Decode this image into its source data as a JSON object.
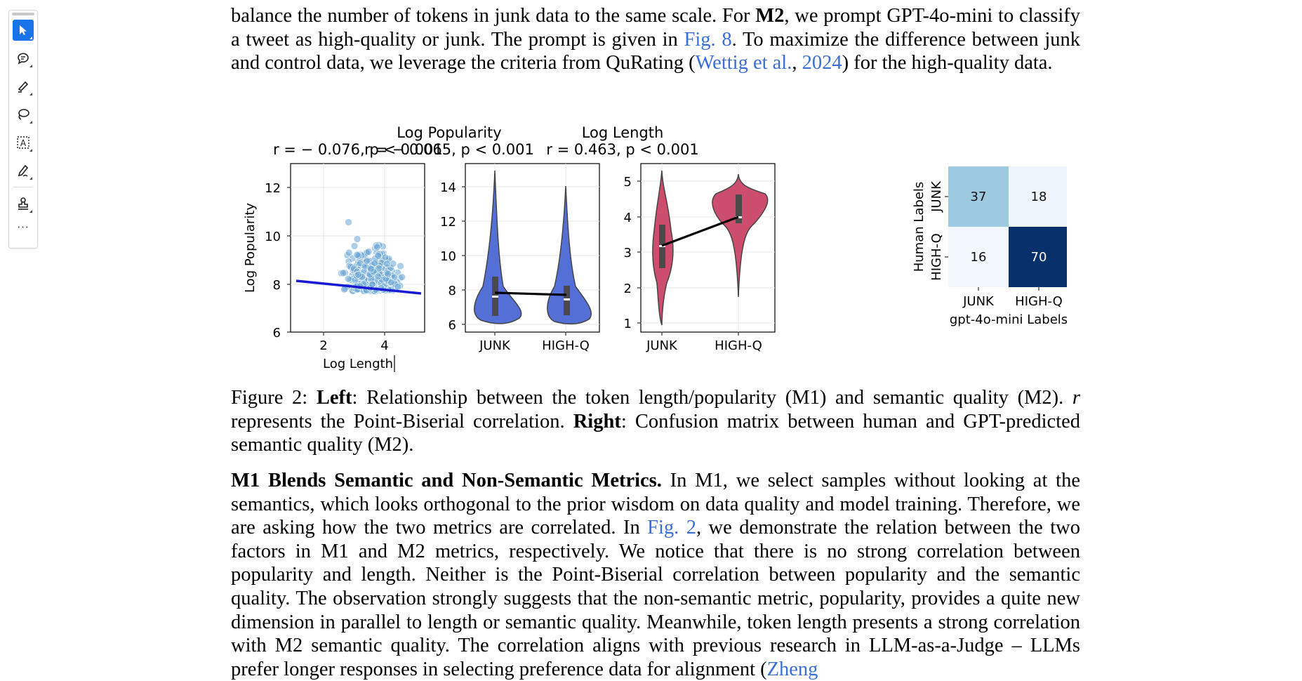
{
  "toolbar": {
    "tools": [
      {
        "name": "select-tool",
        "icon": "cursor-arrow-icon"
      },
      {
        "name": "comment-tool",
        "icon": "comment-bubble-icon"
      },
      {
        "name": "highlight-tool",
        "icon": "pen-highlight-icon"
      },
      {
        "name": "lasso-tool",
        "icon": "lasso-icon"
      },
      {
        "name": "text-select-tool",
        "icon": "text-box-icon"
      },
      {
        "name": "draw-tool",
        "icon": "pen-scribble-icon"
      },
      {
        "name": "stamp-tool",
        "icon": "stamp-icon"
      }
    ],
    "more_label": "···",
    "active_color": "#1a73e8"
  },
  "paragraph_top": {
    "segments": [
      {
        "t": "balance the number of tokens in junk data to the same scale. For "
      },
      {
        "t": "M2",
        "b": true
      },
      {
        "t": ", we prompt GPT-4o-mini to classify a tweet as high-quality or junk. The prompt is given in "
      },
      {
        "t": "Fig. 8",
        "link": true
      },
      {
        "t": ". To maximize the difference between junk and control data, we leverage the criteria from QuRating ("
      },
      {
        "t": "Wettig et al.",
        "link": true
      },
      {
        "t": ", "
      },
      {
        "t": "2024",
        "link": true
      },
      {
        "t": ") for the high-quality data."
      }
    ]
  },
  "figure": {
    "titles": {
      "violin_pop": "Log Popularity",
      "violin_len": "Log Length"
    },
    "stats": {
      "scatter": "r = − 0.076, p < 0.001",
      "violin_pop": "r = − 0.065, p < 0.001",
      "violin_len": "r = 0.463, p < 0.001"
    },
    "scatter": {
      "xlabel": "Log Length",
      "ylabel": "Log Popularity",
      "xticks": [
        "2",
        "4"
      ],
      "yticks": [
        "6",
        "8",
        "10",
        "12"
      ],
      "point_color": "#6aa6d6",
      "line_color": "#1a1ad6"
    },
    "violin_pop": {
      "categories": [
        "JUNK",
        "HIGH-Q"
      ],
      "yticks": [
        "6",
        "8",
        "10",
        "12",
        "14"
      ],
      "color": "#5470d6",
      "medians": [
        7.6,
        7.4
      ],
      "means": [
        7.85,
        7.7
      ]
    },
    "violin_len": {
      "categories": [
        "JUNK",
        "HIGH-Q"
      ],
      "yticks": [
        "1",
        "2",
        "3",
        "4",
        "5"
      ],
      "color": "#cc4d6e",
      "medians": [
        3.2,
        3.95
      ],
      "means": [
        3.15,
        3.95
      ]
    },
    "confusion": {
      "ylabel": "Human Labels",
      "xlabel": "gpt-4o-mini Labels",
      "row_labels": [
        "JUNK",
        "HIGH-Q"
      ],
      "col_labels": [
        "JUNK",
        "HIGH-Q"
      ],
      "cells": [
        [
          "37",
          "18"
        ],
        [
          "16",
          "70"
        ]
      ],
      "colors": [
        [
          "#9ecae1",
          "#eef4fc"
        ],
        [
          "#f3f8fe",
          "#08306b"
        ]
      ]
    }
  },
  "chart_data": [
    {
      "type": "scatter",
      "xlabel": "Log Length",
      "ylabel": "Log Popularity",
      "xlim": [
        1,
        5.3
      ],
      "ylim": [
        6,
        13
      ],
      "title": "r = − 0.076, p < 0.001"
    },
    {
      "type": "violin",
      "categories": [
        "JUNK",
        "HIGH-Q"
      ],
      "title": "Log Popularity",
      "ylim": [
        5.6,
        15
      ]
    },
    {
      "type": "violin",
      "categories": [
        "JUNK",
        "HIGH-Q"
      ],
      "title": "Log Length",
      "ylim": [
        0.6,
        5.5
      ]
    },
    {
      "type": "heatmap",
      "rows": [
        "JUNK",
        "HIGH-Q"
      ],
      "cols": [
        "JUNK",
        "HIGH-Q"
      ],
      "values": [
        [
          37,
          18
        ],
        [
          16,
          70
        ]
      ],
      "xlabel": "gpt-4o-mini Labels",
      "ylabel": "Human Labels"
    }
  ],
  "caption": {
    "segments": [
      {
        "t": "Figure 2: "
      },
      {
        "t": "Left",
        "b": true
      },
      {
        "t": ": Relationship between the token length/popularity (M1) and semantic quality (M2). "
      },
      {
        "t": "r",
        "i": true
      },
      {
        "t": " represents the Point-Biserial correlation. "
      },
      {
        "t": "Right",
        "b": true
      },
      {
        "t": ": Confusion matrix between human and GPT-predicted semantic quality (M2)."
      }
    ]
  },
  "paragraph_bottom": {
    "segments": [
      {
        "t": "M1 Blends Semantic and Non-Semantic Metrics.",
        "b": true
      },
      {
        "t": " In M1, we select samples without looking at the semantics, which looks orthogonal to the prior wisdom on data quality and model training. Therefore, we are asking how the two metrics are correlated. In "
      },
      {
        "t": "Fig. 2",
        "link": true
      },
      {
        "t": ", we demonstrate the relation between the two factors in M1 and M2 metrics, respectively. We notice that there is no strong correlation between popularity and length. Neither is the Point-Biserial correlation between popularity and the semantic quality. The observation strongly suggests that the non-semantic metric, popularity, provides a quite new dimension in parallel to length or semantic quality. Meanwhile, token length presents a strong correlation with M2 semantic quality. The correlation aligns with previous research in LLM-as-a-Judge – LLMs prefer longer responses in selecting preference data for alignment ("
      },
      {
        "t": "Zheng",
        "link": true
      }
    ]
  }
}
